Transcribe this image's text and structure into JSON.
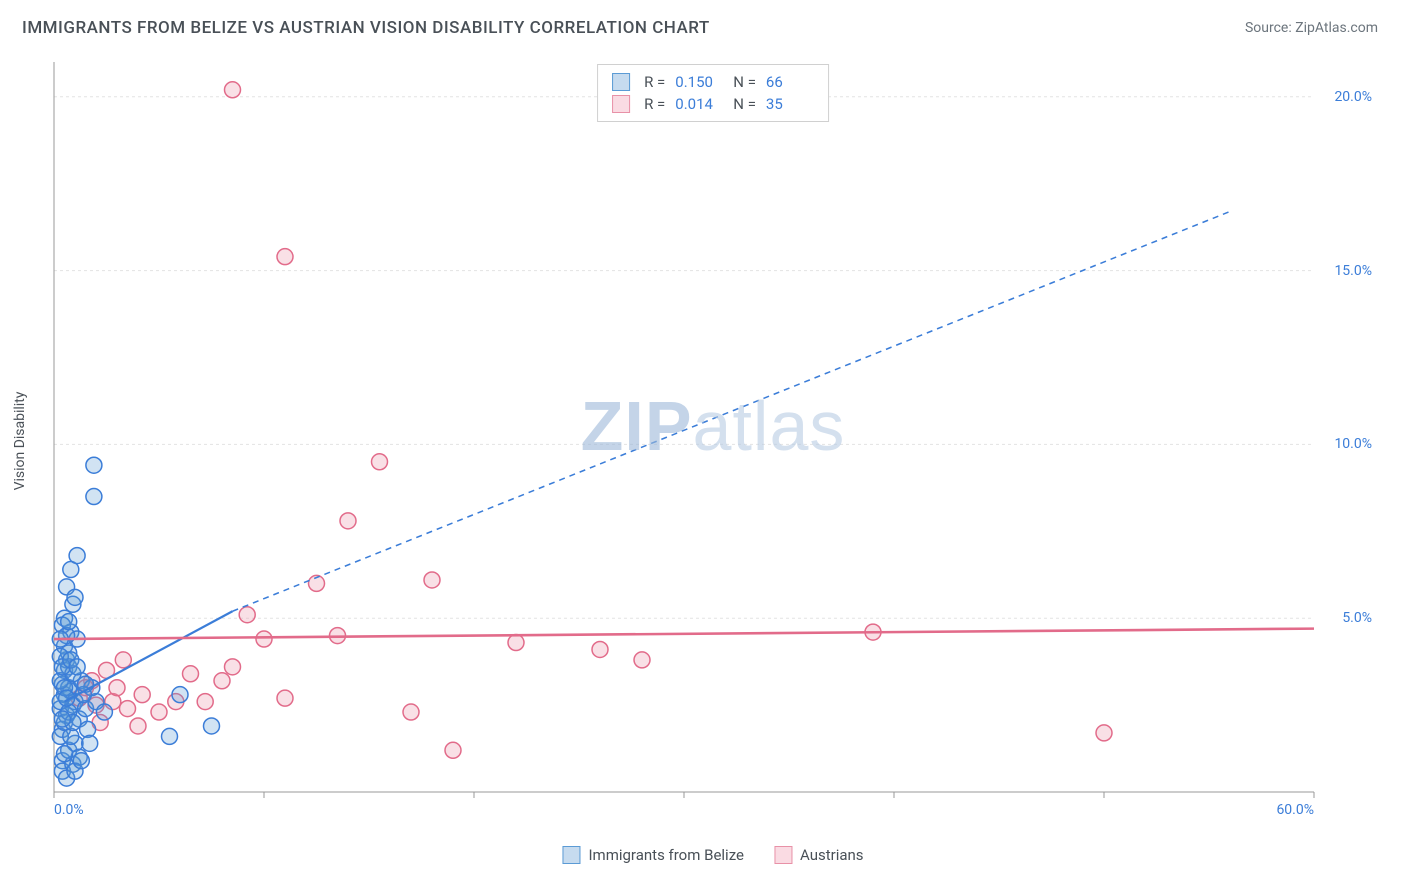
{
  "header": {
    "title": "IMMIGRANTS FROM BELIZE VS AUSTRIAN VISION DISABILITY CORRELATION CHART",
    "source_label": "Source:",
    "source_name": "ZipAtlas.com"
  },
  "watermark": {
    "part1": "ZIP",
    "part2": "atlas"
  },
  "chart": {
    "type": "scatter",
    "ylabel": "Vision Disability",
    "background_color": "#ffffff",
    "grid_color": "#e3e3e3",
    "axis_line_color": "#999999",
    "tick_label_color": "#3b7dd8",
    "xlim": [
      0,
      60
    ],
    "ylim": [
      0,
      21
    ],
    "x_ticks": [
      0,
      10,
      20,
      30,
      40,
      50,
      60
    ],
    "x_tick_labels": [
      "0.0%",
      "",
      "",
      "",
      "",
      "",
      "60.0%"
    ],
    "y_ticks": [
      5,
      10,
      15,
      20
    ],
    "y_tick_labels": [
      "5.0%",
      "10.0%",
      "15.0%",
      "20.0%"
    ],
    "marker_radius": 8,
    "marker_stroke_width": 1.5,
    "marker_fill_opacity": 0.28,
    "series": [
      {
        "name": "Immigrants from Belize",
        "color": "#5b9bd5",
        "stroke": "#3b7dd8",
        "legend_swatch_fill": "#c6dbef",
        "legend_swatch_border": "#5b9bd5",
        "r_value": "0.150",
        "n_value": "66",
        "trend_solid": {
          "x1": 0.5,
          "y1": 2.6,
          "x2": 8.5,
          "y2": 5.2
        },
        "trend_dashed": {
          "x1": 8.5,
          "y1": 5.2,
          "x2": 56,
          "y2": 16.7
        },
        "trend_width": 2.2,
        "dash_pattern": "6,5",
        "points": [
          [
            0.3,
            2.4
          ],
          [
            0.5,
            2.8
          ],
          [
            0.4,
            3.1
          ],
          [
            0.6,
            2.2
          ],
          [
            0.8,
            2.9
          ],
          [
            0.5,
            3.5
          ],
          [
            0.7,
            3.0
          ],
          [
            0.4,
            1.8
          ],
          [
            0.9,
            2.5
          ],
          [
            0.3,
            3.2
          ],
          [
            0.6,
            3.8
          ],
          [
            0.5,
            4.2
          ],
          [
            0.8,
            4.6
          ],
          [
            0.4,
            0.9
          ],
          [
            0.7,
            1.2
          ],
          [
            0.3,
            1.6
          ],
          [
            1.0,
            2.6
          ],
          [
            1.2,
            2.1
          ],
          [
            1.5,
            2.4
          ],
          [
            0.5,
            5.0
          ],
          [
            0.9,
            5.4
          ],
          [
            0.6,
            5.9
          ],
          [
            0.8,
            6.4
          ],
          [
            1.1,
            6.8
          ],
          [
            0.7,
            4.0
          ],
          [
            1.3,
            3.2
          ],
          [
            1.0,
            1.4
          ],
          [
            0.4,
            0.6
          ],
          [
            0.6,
            0.4
          ],
          [
            0.9,
            0.8
          ],
          [
            1.2,
            1.0
          ],
          [
            1.6,
            1.8
          ],
          [
            2.0,
            2.6
          ],
          [
            2.4,
            2.3
          ],
          [
            1.8,
            3.0
          ],
          [
            0.5,
            2.0
          ],
          [
            0.3,
            2.6
          ],
          [
            0.7,
            3.6
          ],
          [
            1.1,
            4.4
          ],
          [
            0.4,
            4.8
          ],
          [
            0.8,
            1.6
          ],
          [
            1.4,
            2.8
          ],
          [
            0.3,
            3.9
          ],
          [
            0.6,
            4.5
          ],
          [
            0.9,
            3.4
          ],
          [
            1.9,
            9.4
          ],
          [
            1.9,
            8.5
          ],
          [
            0.5,
            1.1
          ],
          [
            1.0,
            0.6
          ],
          [
            1.3,
            0.9
          ],
          [
            1.7,
            1.4
          ],
          [
            0.4,
            3.6
          ],
          [
            0.7,
            2.3
          ],
          [
            0.5,
            3.0
          ],
          [
            0.8,
            3.8
          ],
          [
            0.3,
            4.4
          ],
          [
            0.6,
            2.7
          ],
          [
            0.9,
            2.0
          ],
          [
            1.1,
            3.6
          ],
          [
            1.5,
            3.1
          ],
          [
            6.0,
            2.8
          ],
          [
            7.5,
            1.9
          ],
          [
            5.5,
            1.6
          ],
          [
            0.4,
            2.1
          ],
          [
            0.7,
            4.9
          ],
          [
            1.0,
            5.6
          ]
        ]
      },
      {
        "name": "Austrians",
        "color": "#e891a7",
        "stroke": "#e26b8a",
        "legend_swatch_fill": "#fadbe3",
        "legend_swatch_border": "#e891a7",
        "r_value": "0.014",
        "n_value": "35",
        "trend_solid": {
          "x1": 0,
          "y1": 4.4,
          "x2": 60,
          "y2": 4.7
        },
        "trend_width": 2.6,
        "points": [
          [
            1.2,
            2.7
          ],
          [
            2.0,
            2.5
          ],
          [
            2.8,
            2.6
          ],
          [
            3.5,
            2.4
          ],
          [
            4.2,
            2.8
          ],
          [
            5.0,
            2.3
          ],
          [
            5.8,
            2.6
          ],
          [
            3.0,
            3.0
          ],
          [
            6.5,
            3.4
          ],
          [
            7.2,
            2.6
          ],
          [
            8.5,
            3.6
          ],
          [
            10.0,
            4.4
          ],
          [
            11.0,
            2.7
          ],
          [
            9.2,
            5.1
          ],
          [
            12.5,
            6.0
          ],
          [
            13.5,
            4.5
          ],
          [
            11.0,
            15.4
          ],
          [
            8.5,
            20.2
          ],
          [
            8.0,
            3.2
          ],
          [
            14.0,
            7.8
          ],
          [
            15.5,
            9.5
          ],
          [
            18.0,
            6.1
          ],
          [
            17.0,
            2.3
          ],
          [
            19.0,
            1.2
          ],
          [
            22.0,
            4.3
          ],
          [
            26.0,
            4.1
          ],
          [
            28.0,
            3.8
          ],
          [
            39.0,
            4.6
          ],
          [
            50.0,
            1.7
          ],
          [
            1.8,
            3.2
          ],
          [
            2.5,
            3.5
          ],
          [
            4.0,
            1.9
          ],
          [
            3.3,
            3.8
          ],
          [
            1.5,
            3.0
          ],
          [
            2.2,
            2.0
          ]
        ]
      }
    ],
    "legend_bottom": [
      {
        "label": "Immigrants from Belize",
        "series_idx": 0
      },
      {
        "label": "Austrians",
        "series_idx": 1
      }
    ],
    "legend_top_labels": {
      "r": "R =",
      "n": "N ="
    }
  }
}
